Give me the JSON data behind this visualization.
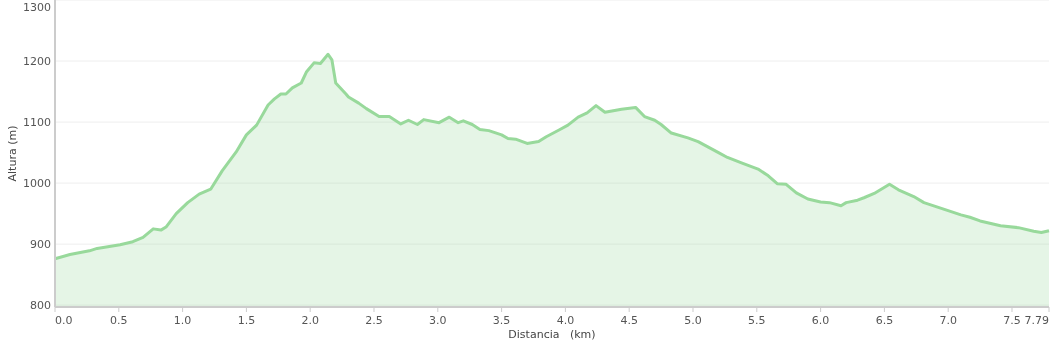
{
  "chart_data": {
    "type": "area",
    "xlabel": "Distancia   (km)",
    "ylabel": "Altura (m)",
    "xlim": [
      0,
      7.79
    ],
    "ylim": [
      797,
      1300
    ],
    "xticks": [
      {
        "value": 0,
        "label": "0.0"
      },
      0.5,
      {
        "value": 1,
        "label": "1.0"
      },
      1.5,
      {
        "value": 2,
        "label": "2.0"
      },
      2.5,
      {
        "value": 3,
        "label": "3.0"
      },
      3.5,
      {
        "value": 4,
        "label": "4.0"
      },
      4.5,
      {
        "value": 5,
        "label": "5.0"
      },
      5.5,
      {
        "value": 6,
        "label": "6.0"
      },
      6.5,
      {
        "value": 7,
        "label": "7.0"
      },
      7.5,
      7.79
    ],
    "yticks": [
      800,
      900,
      1000,
      1100,
      1200,
      1300
    ],
    "grid": "y",
    "marker": "none",
    "line_style": "solid",
    "series": [
      {
        "color": "#98d99b",
        "x": [
          0,
          0.117,
          0.27,
          0.33,
          0.51,
          0.61,
          0.69,
          0.77,
          0.83,
          0.87,
          0.95,
          1.04,
          1.13,
          1.22,
          1.31,
          1.42,
          1.5,
          1.58,
          1.67,
          1.72,
          1.77,
          1.81,
          1.86,
          1.93,
          1.97,
          2.03,
          2.08,
          2.14,
          2.17,
          2.2,
          2.28,
          2.3,
          2.38,
          2.44,
          2.54,
          2.62,
          2.71,
          2.77,
          2.84,
          2.89,
          3.01,
          3.09,
          3.16,
          3.2,
          3.27,
          3.33,
          3.4,
          3.5,
          3.55,
          3.61,
          3.7,
          3.79,
          3.85,
          3.95,
          4.02,
          4.1,
          4.17,
          4.24,
          4.31,
          4.44,
          4.55,
          4.62,
          4.7,
          4.75,
          4.83,
          4.96,
          5.04,
          5.12,
          5.2,
          5.27,
          5.38,
          5.51,
          5.59,
          5.66,
          5.73,
          5.81,
          5.9,
          6,
          6.07,
          6.16,
          6.2,
          6.29,
          6.34,
          6.42,
          6.54,
          6.61,
          6.73,
          6.81,
          6.97,
          7.1,
          7.17,
          7.25,
          7.41,
          7.55,
          7.67,
          7.73,
          7.79
        ],
        "values": [
          876,
          883,
          889,
          893,
          899,
          904,
          911,
          925,
          923,
          928,
          950,
          968,
          982,
          990,
          1020,
          1051,
          1079,
          1095,
          1128,
          1138,
          1146,
          1146,
          1156,
          1164,
          1182,
          1197,
          1196,
          1211,
          1202,
          1164,
          1146,
          1141,
          1131,
          1122,
          1109,
          1109,
          1097,
          1103,
          1096,
          1104,
          1099,
          1108,
          1099,
          1102,
          1096,
          1088,
          1086,
          1079,
          1073,
          1072,
          1065,
          1068,
          1076,
          1087,
          1095,
          1108,
          1115,
          1127,
          1116,
          1121,
          1124,
          1109,
          1103,
          1096,
          1082,
          1074,
          1068,
          1059,
          1050,
          1042,
          1033,
          1023,
          1012,
          999,
          998,
          984,
          974,
          969,
          968,
          963,
          968,
          972,
          976,
          983,
          998,
          989,
          978,
          968,
          957,
          948,
          944,
          938,
          930,
          927,
          921,
          919,
          922
        ]
      }
    ]
  }
}
